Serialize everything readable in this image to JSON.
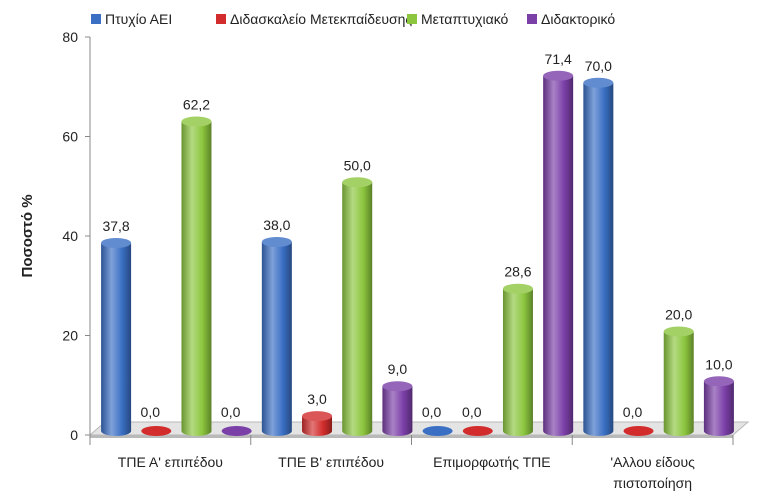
{
  "chart_data": {
    "type": "bar",
    "style": "3d-cylinder",
    "categories": [
      "ΤΠΕ Α' επιπέδου",
      "ΤΠΕ Β' επιπέδου",
      "Επιμορφωτής ΤΠΕ",
      "'Αλλου είδους πιστοποίηση"
    ],
    "series": [
      {
        "name": "Πτυχίο ΑΕΙ",
        "color": "#3a6fc4",
        "values": [
          37.8,
          38.0,
          0.0,
          70.0
        ],
        "labels": [
          "37,8",
          "38,0",
          "0,0",
          "70,0"
        ]
      },
      {
        "name": "Διδασκαλείο Μετεκπαίδευσης",
        "color": "#d22c2c",
        "values": [
          0.0,
          3.0,
          0.0,
          0.0
        ],
        "labels": [
          "0,0",
          "3,0",
          "0,0",
          "0,0"
        ]
      },
      {
        "name": "Μεταπτυχιακό",
        "color": "#8cc63e",
        "values": [
          62.2,
          50.0,
          28.6,
          20.0
        ],
        "labels": [
          "62,2",
          "50,0",
          "28,6",
          "20,0"
        ]
      },
      {
        "name": "Διδακτορικό",
        "color": "#7b3fa8",
        "values": [
          0.0,
          9.0,
          71.4,
          10.0
        ],
        "labels": [
          "0,0",
          "9,0",
          "71,4",
          "10,0"
        ]
      }
    ],
    "ylabel": "Ποσοστό %",
    "ylim": [
      0,
      80
    ],
    "yticks": [
      "0",
      "20",
      "40",
      "60",
      "80"
    ],
    "legend_position": "top",
    "grid": false
  }
}
